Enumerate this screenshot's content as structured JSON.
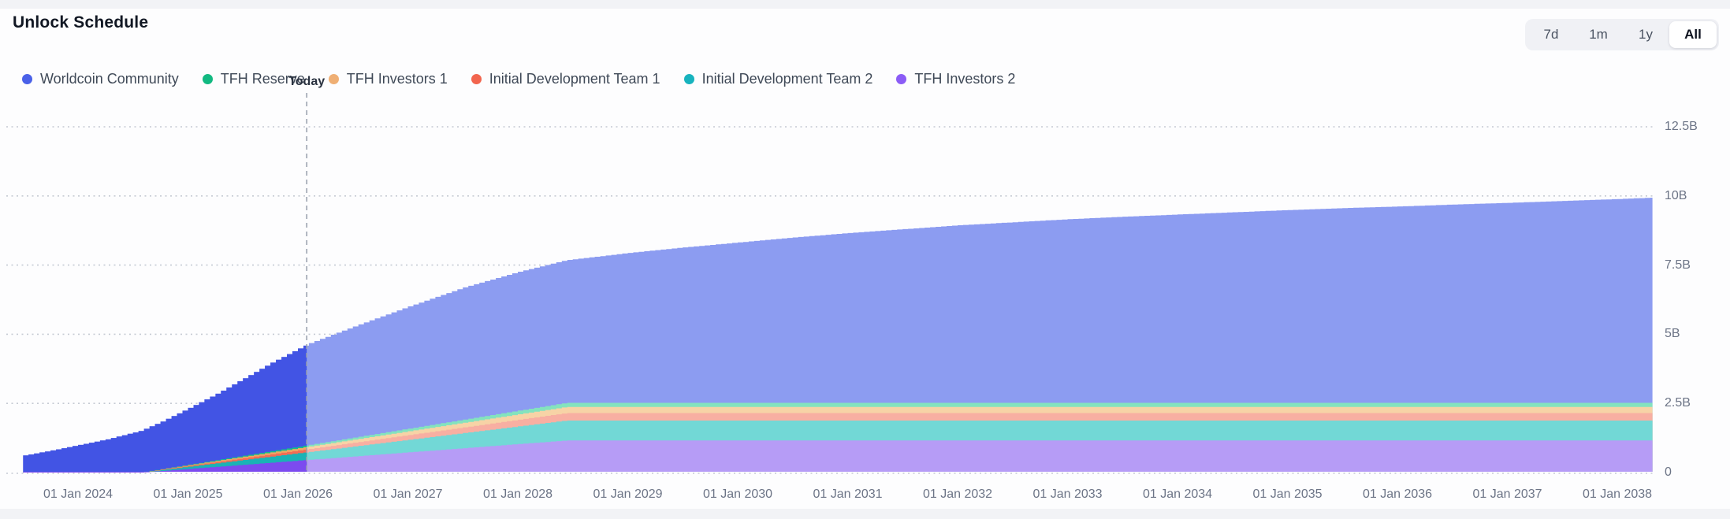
{
  "header": {
    "title": "Unlock Schedule"
  },
  "range_selector": {
    "options": [
      "7d",
      "1m",
      "1y",
      "All"
    ],
    "selected": "All"
  },
  "chart_data": {
    "type": "area",
    "stacked": true,
    "title": "Unlock Schedule",
    "legend_position": "top",
    "grid": "dotted-horizontal",
    "x_axis": {
      "start_year_decimal": 2023.5,
      "end_year_decimal": 2038.32,
      "ticks": [
        {
          "label": "01 Jan 2024",
          "year": 2024
        },
        {
          "label": "01 Jan 2025",
          "year": 2025
        },
        {
          "label": "01 Jan 2026",
          "year": 2026
        },
        {
          "label": "01 Jan 2027",
          "year": 2027
        },
        {
          "label": "01 Jan 2028",
          "year": 2028
        },
        {
          "label": "01 Jan 2029",
          "year": 2029
        },
        {
          "label": "01 Jan 2030",
          "year": 2030
        },
        {
          "label": "01 Jan 2031",
          "year": 2031
        },
        {
          "label": "01 Jan 2032",
          "year": 2032
        },
        {
          "label": "01 Jan 2033",
          "year": 2033
        },
        {
          "label": "01 Jan 2034",
          "year": 2034
        },
        {
          "label": "01 Jan 2035",
          "year": 2035
        },
        {
          "label": "01 Jan 2036",
          "year": 2036
        },
        {
          "label": "01 Jan 2037",
          "year": 2037
        },
        {
          "label": "01 Jan 2038",
          "year": 2038
        }
      ]
    },
    "y_axis": {
      "unit": "B tokens",
      "ticks": [
        {
          "label": "0",
          "value": 0
        },
        {
          "label": "2.5B",
          "value": 2.5
        },
        {
          "label": "5B",
          "value": 5
        },
        {
          "label": "7.5B",
          "value": 7.5
        },
        {
          "label": "10B",
          "value": 10
        },
        {
          "label": "12.5B",
          "value": 12.5
        }
      ]
    },
    "today": {
      "label": "Today",
      "year_decimal": 2026.08
    },
    "vesting_notes": {
      "non_community_unlock_start": 2024.56,
      "non_community_unlock_full": 2028.43,
      "total_supply_b": 10
    },
    "series": [
      {
        "name": "TFH Investors 2",
        "legend_color": "#8B5CF6",
        "area_color_past": "#7C4BEF",
        "area_color_future": "#B69CF6",
        "final_value_b": 1.16,
        "anchors": [
          [
            2023.5,
            0
          ],
          [
            2024.56,
            0
          ],
          [
            2028.43,
            1.16
          ],
          [
            2038.32,
            1.16
          ]
        ]
      },
      {
        "name": "Initial Development Team 2",
        "legend_color": "#17B3BE",
        "area_color_past": "#1AB3B5",
        "area_color_future": "#72D8D6",
        "final_value_b": 0.72,
        "anchors": [
          [
            2023.5,
            0
          ],
          [
            2024.56,
            0
          ],
          [
            2028.43,
            0.72
          ],
          [
            2038.32,
            0.72
          ]
        ]
      },
      {
        "name": "Initial Development Team 1",
        "legend_color": "#F2654E",
        "area_color_past": "#F26C55",
        "area_color_future": "#F8AFA2",
        "final_value_b": 0.27,
        "anchors": [
          [
            2023.5,
            0
          ],
          [
            2024.56,
            0
          ],
          [
            2028.43,
            0.27
          ],
          [
            2038.32,
            0.27
          ]
        ]
      },
      {
        "name": "TFH Investors 1",
        "legend_color": "#EFAF74",
        "area_color_past": "#F0A665",
        "area_color_future": "#F7D3A6",
        "final_value_b": 0.22,
        "anchors": [
          [
            2023.5,
            0
          ],
          [
            2024.56,
            0
          ],
          [
            2028.43,
            0.22
          ],
          [
            2038.32,
            0.22
          ]
        ]
      },
      {
        "name": "TFH Reserve",
        "legend_color": "#12B981",
        "area_color_past": "#14BE8A",
        "area_color_future": "#83E3BE",
        "final_value_b": 0.15,
        "anchors": [
          [
            2023.5,
            0
          ],
          [
            2024.56,
            0
          ],
          [
            2028.43,
            0.15
          ],
          [
            2038.32,
            0.15
          ]
        ]
      },
      {
        "name": "Worldcoin Community",
        "legend_color": "#4A61E8",
        "area_color_past": "#4254E4",
        "area_color_future": "#8C9CF1",
        "final_value_b": 7.42,
        "anchors": [
          [
            2023.5,
            0.62
          ],
          [
            2023.75,
            0.8
          ],
          [
            2024.0,
            1.0
          ],
          [
            2024.25,
            1.2
          ],
          [
            2024.5,
            1.45
          ],
          [
            2024.75,
            1.72
          ],
          [
            2025.0,
            2.05
          ],
          [
            2025.25,
            2.4
          ],
          [
            2025.5,
            2.8
          ],
          [
            2025.75,
            3.2
          ],
          [
            2026.08,
            3.66
          ],
          [
            2026.5,
            4.02
          ],
          [
            2027.0,
            4.42
          ],
          [
            2027.5,
            4.78
          ],
          [
            2028.0,
            5.02
          ],
          [
            2028.43,
            5.16
          ],
          [
            2029.0,
            5.42
          ],
          [
            2029.5,
            5.62
          ],
          [
            2030.0,
            5.8
          ],
          [
            2030.5,
            5.98
          ],
          [
            2031.0,
            6.14
          ],
          [
            2031.5,
            6.28
          ],
          [
            2032.0,
            6.42
          ],
          [
            2032.5,
            6.53
          ],
          [
            2033.0,
            6.64
          ],
          [
            2033.5,
            6.73
          ],
          [
            2034.0,
            6.81
          ],
          [
            2034.5,
            6.89
          ],
          [
            2035.0,
            6.97
          ],
          [
            2035.5,
            7.04
          ],
          [
            2036.0,
            7.1
          ],
          [
            2036.5,
            7.17
          ],
          [
            2037.0,
            7.23
          ],
          [
            2037.5,
            7.3
          ],
          [
            2038.0,
            7.37
          ],
          [
            2038.32,
            7.42
          ]
        ]
      }
    ]
  }
}
